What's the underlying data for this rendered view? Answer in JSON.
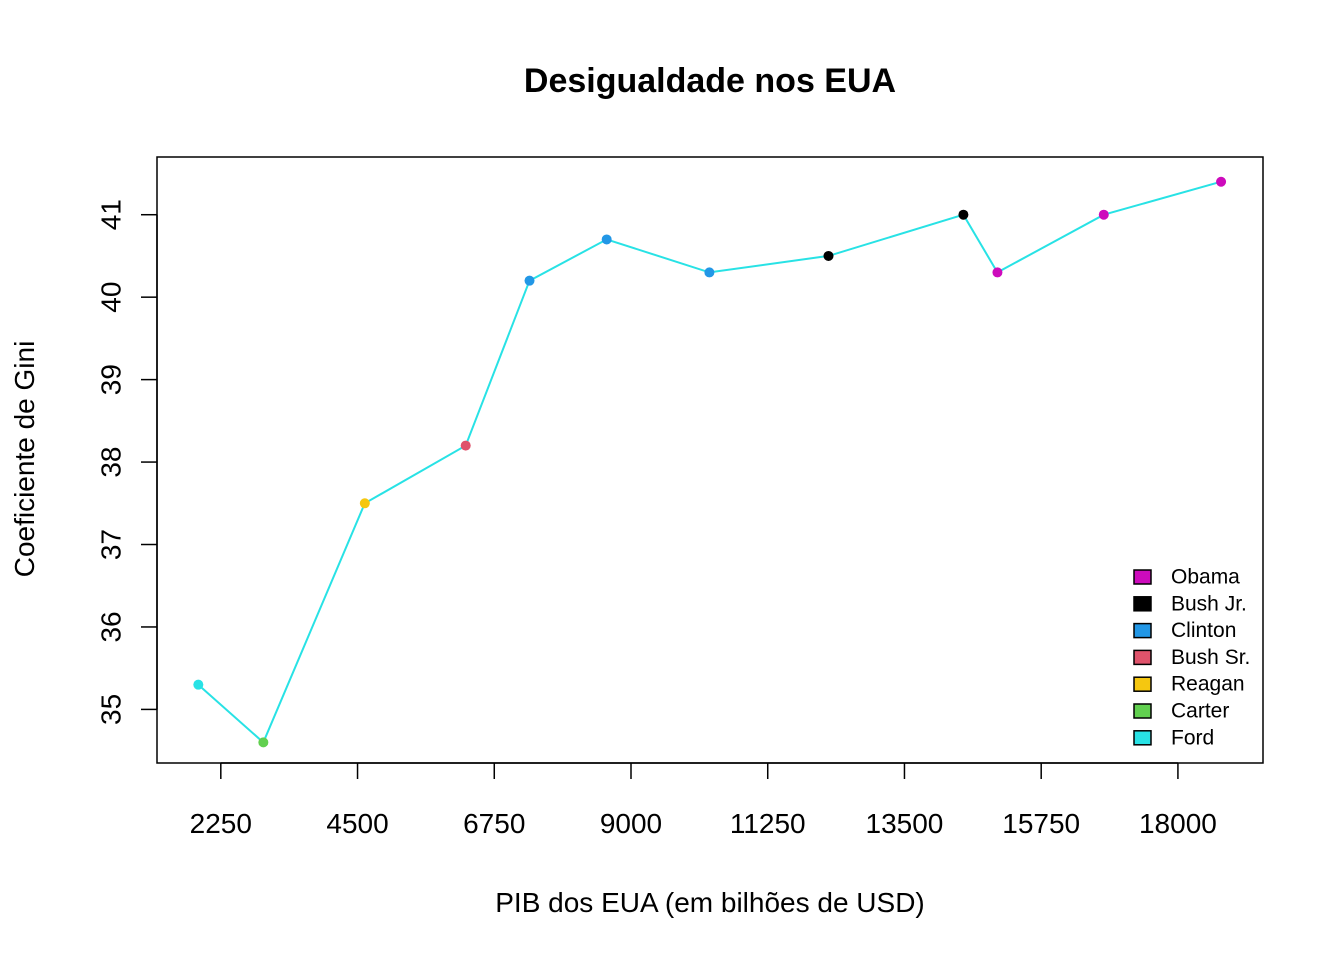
{
  "chart_data": {
    "type": "line",
    "title": "Desigualdade nos EUA",
    "xlabel": "PIB dos EUA (em bilhões de USD)",
    "ylabel": "Coeficiente de Gini",
    "xlim": [
      1200,
      19400
    ],
    "ylim": [
      34.35,
      41.7
    ],
    "x_ticks": [
      2250,
      4500,
      6750,
      9000,
      11250,
      13500,
      15750,
      18000
    ],
    "y_ticks": [
      35,
      36,
      37,
      38,
      39,
      40,
      41
    ],
    "line_color": "#28E2E5",
    "grid": false,
    "legend_position": "bottom-right",
    "points": [
      {
        "x": 1880,
        "y": 35.3,
        "group": "Ford"
      },
      {
        "x": 2950,
        "y": 34.6,
        "group": "Carter"
      },
      {
        "x": 4620,
        "y": 37.5,
        "group": "Reagan"
      },
      {
        "x": 6280,
        "y": 38.2,
        "group": "Bush Sr."
      },
      {
        "x": 7330,
        "y": 40.2,
        "group": "Clinton"
      },
      {
        "x": 8600,
        "y": 40.7,
        "group": "Clinton"
      },
      {
        "x": 10290,
        "y": 40.3,
        "group": "Clinton"
      },
      {
        "x": 12250,
        "y": 40.5,
        "group": "Bush Jr."
      },
      {
        "x": 14470,
        "y": 41.0,
        "group": "Bush Jr."
      },
      {
        "x": 15030,
        "y": 40.3,
        "group": "Obama"
      },
      {
        "x": 16780,
        "y": 41.0,
        "group": "Obama"
      },
      {
        "x": 18710,
        "y": 41.4,
        "group": "Obama"
      }
    ],
    "legend": [
      {
        "name": "Obama",
        "color": "#CD0BBC"
      },
      {
        "name": "Bush Jr.",
        "color": "#000000"
      },
      {
        "name": "Clinton",
        "color": "#2297E6"
      },
      {
        "name": "Bush Sr.",
        "color": "#DF536B"
      },
      {
        "name": "Reagan",
        "color": "#F5C710"
      },
      {
        "name": "Carter",
        "color": "#61D04F"
      },
      {
        "name": "Ford",
        "color": "#28E2E5"
      }
    ]
  }
}
